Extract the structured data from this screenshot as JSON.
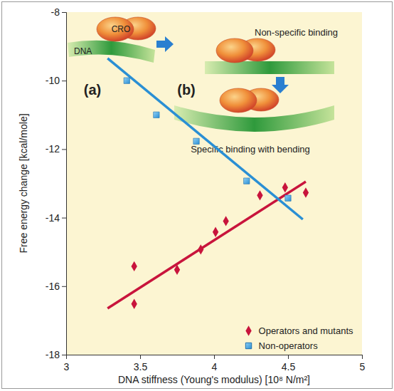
{
  "chart_data": {
    "type": "scatter",
    "x_label": "DNA stiffness (Young's modulus) [10⁸ N/m²]",
    "y_label": "Free energy change [kcal/mole]",
    "xlim": [
      3,
      5
    ],
    "xticks": [
      3,
      3.5,
      4,
      4.5,
      5
    ],
    "ylim": [
      -18,
      -8
    ],
    "yticks": [
      -18,
      -16,
      -14,
      -12,
      -10,
      -8
    ],
    "grid": false,
    "legend": "lower right",
    "annotations": [
      "CRO",
      "DNA",
      "Non-specific binding",
      "Specific binding with bending",
      "(a)",
      "(b)"
    ],
    "series": [
      {
        "name": "Operators and mutants",
        "type": "scatter",
        "marker": "diamond",
        "color": "#c8143c",
        "x": [
          3.46,
          3.46,
          3.75,
          3.91,
          4.01,
          4.08,
          4.31,
          4.48,
          4.62
        ],
        "values": [
          -15.42,
          -16.52,
          -15.52,
          -14.93,
          -14.42,
          -14.1,
          -13.35,
          -13.12,
          -13.27
        ]
      },
      {
        "name": "Non-operators",
        "type": "scatter",
        "marker": "square",
        "color": "#2a8fd4",
        "x": [
          3.41,
          3.61,
          3.88,
          4.22,
          4.5
        ],
        "values": [
          -10.0,
          -11.0,
          -11.77,
          -12.93,
          -13.43
        ]
      },
      {
        "type": "line",
        "line_style": "solid",
        "color": "#c8143c",
        "x": [
          3.28,
          4.62
        ],
        "values": [
          -16.65,
          -12.95
        ]
      },
      {
        "type": "line",
        "line_style": "solid",
        "color": "#2a8fd4",
        "x": [
          3.28,
          4.6
        ],
        "values": [
          -9.35,
          -14.05
        ]
      }
    ]
  }
}
